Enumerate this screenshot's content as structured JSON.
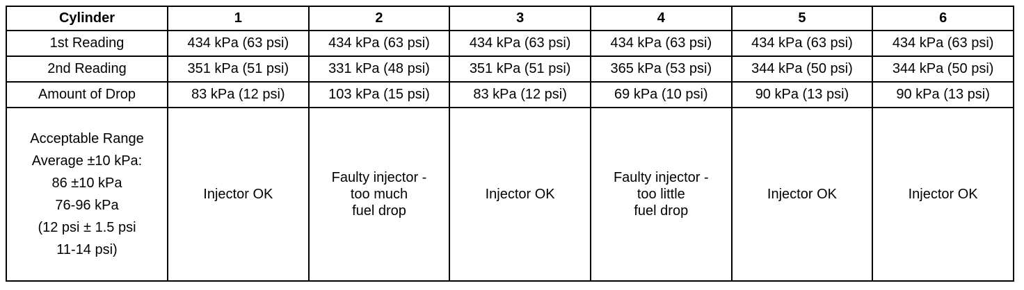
{
  "table": {
    "header": [
      "Cylinder",
      "1",
      "2",
      "3",
      "4",
      "5",
      "6"
    ],
    "rows": [
      [
        "1st Reading",
        "434 kPa (63 psi)",
        "434 kPa (63 psi)",
        "434 kPa (63 psi)",
        "434 kPa (63 psi)",
        "434 kPa (63 psi)",
        "434 kPa (63 psi)"
      ],
      [
        "2nd Reading",
        "351 kPa (51 psi)",
        "331 kPa (48 psi)",
        "351 kPa (51 psi)",
        "365 kPa (53 psi)",
        "344 kPa (50 psi)",
        "344 kPa (50 psi)"
      ],
      [
        "Amount of Drop",
        "83 kPa (12 psi)",
        "103 kPa (15 psi)",
        "83 kPa (12 psi)",
        "69 kPa (10 psi)",
        "90 kPa (13 psi)",
        "90 kPa (13 psi)"
      ],
      [
        [
          "Acceptable Range",
          "Average ±10 kPa:",
          "86 ±10 kPa",
          "76-96 kPa",
          "(12 psi ± 1.5 psi",
          "11-14 psi)"
        ],
        [
          "Injector OK"
        ],
        [
          "Faulty injector -",
          "too much",
          "fuel drop"
        ],
        [
          "Injector OK"
        ],
        [
          "Faulty injector -",
          "too little",
          "fuel drop"
        ],
        [
          "Injector OK"
        ],
        [
          "Injector OK"
        ]
      ]
    ]
  }
}
